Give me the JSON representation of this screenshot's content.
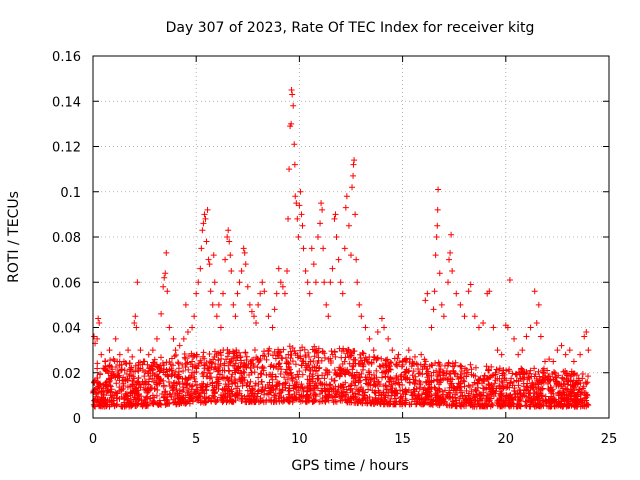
{
  "chart_data": {
    "type": "scatter",
    "title": "Day 307 of 2023, Rate Of TEC Index for receiver kitg",
    "xlabel": "GPS time / hours",
    "ylabel": "ROTI / TECUs",
    "xlim": [
      0,
      25
    ],
    "ylim": [
      0,
      0.16
    ],
    "xticks": [
      0,
      5,
      10,
      15,
      20,
      25
    ],
    "xtick_labels": [
      "0",
      "5",
      "10",
      "15",
      "20",
      "25"
    ],
    "yticks": [
      0,
      0.02,
      0.04,
      0.06,
      0.08,
      0.1,
      0.12,
      0.14,
      0.16
    ],
    "ytick_labels": [
      "0",
      "0.02",
      "0.04",
      "0.06",
      "0.08",
      "0.1",
      "0.12",
      "0.14",
      "0.16"
    ],
    "grid": true,
    "marker": "+",
    "color": "#ff0000",
    "series": [
      {
        "points": [
          [
            0.05,
            0.036
          ],
          [
            0.1,
            0.033
          ],
          [
            0.2,
            0.035
          ],
          [
            0.25,
            0.044
          ],
          [
            0.3,
            0.042
          ],
          [
            0.4,
            0.028
          ],
          [
            0.5,
            0.022
          ],
          [
            0.6,
            0.025
          ],
          [
            0.8,
            0.03
          ],
          [
            1.0,
            0.026
          ],
          [
            1.1,
            0.035
          ],
          [
            1.3,
            0.028
          ],
          [
            1.5,
            0.025
          ],
          [
            1.7,
            0.03
          ],
          [
            1.9,
            0.027
          ],
          [
            2.0,
            0.042
          ],
          [
            2.05,
            0.045
          ],
          [
            2.1,
            0.04
          ],
          [
            2.15,
            0.06
          ],
          [
            2.3,
            0.03
          ],
          [
            2.5,
            0.025
          ],
          [
            2.7,
            0.028
          ],
          [
            2.9,
            0.03
          ],
          [
            3.1,
            0.035
          ],
          [
            3.3,
            0.046
          ],
          [
            3.4,
            0.058
          ],
          [
            3.45,
            0.062
          ],
          [
            3.5,
            0.064
          ],
          [
            3.55,
            0.073
          ],
          [
            3.6,
            0.056
          ],
          [
            3.7,
            0.04
          ],
          [
            3.9,
            0.035
          ],
          [
            4.0,
            0.03
          ],
          [
            4.2,
            0.032
          ],
          [
            4.4,
            0.035
          ],
          [
            4.5,
            0.05
          ],
          [
            4.6,
            0.038
          ],
          [
            4.8,
            0.04
          ],
          [
            4.9,
            0.045
          ],
          [
            5.0,
            0.055
          ],
          [
            5.1,
            0.06
          ],
          [
            5.2,
            0.066
          ],
          [
            5.25,
            0.075
          ],
          [
            5.3,
            0.083
          ],
          [
            5.35,
            0.086
          ],
          [
            5.4,
            0.09
          ],
          [
            5.45,
            0.088
          ],
          [
            5.5,
            0.078
          ],
          [
            5.55,
            0.092
          ],
          [
            5.6,
            0.07
          ],
          [
            5.65,
            0.068
          ],
          [
            5.7,
            0.056
          ],
          [
            5.8,
            0.05
          ],
          [
            5.85,
            0.072
          ],
          [
            5.9,
            0.06
          ],
          [
            6.0,
            0.045
          ],
          [
            6.1,
            0.05
          ],
          [
            6.2,
            0.04
          ],
          [
            6.3,
            0.055
          ],
          [
            6.4,
            0.07
          ],
          [
            6.5,
            0.08
          ],
          [
            6.55,
            0.083
          ],
          [
            6.6,
            0.078
          ],
          [
            6.65,
            0.072
          ],
          [
            6.7,
            0.065
          ],
          [
            6.8,
            0.05
          ],
          [
            6.9,
            0.045
          ],
          [
            7.0,
            0.055
          ],
          [
            7.1,
            0.06
          ],
          [
            7.2,
            0.065
          ],
          [
            7.3,
            0.075
          ],
          [
            7.35,
            0.073
          ],
          [
            7.4,
            0.068
          ],
          [
            7.5,
            0.058
          ],
          [
            7.6,
            0.05
          ],
          [
            7.7,
            0.047
          ],
          [
            7.8,
            0.045
          ],
          [
            7.9,
            0.042
          ],
          [
            8.0,
            0.05
          ],
          [
            8.1,
            0.055
          ],
          [
            8.2,
            0.06
          ],
          [
            8.3,
            0.056
          ],
          [
            8.5,
            0.045
          ],
          [
            8.7,
            0.04
          ],
          [
            8.8,
            0.048
          ],
          [
            8.9,
            0.055
          ],
          [
            9.0,
            0.066
          ],
          [
            9.1,
            0.06
          ],
          [
            9.2,
            0.058
          ],
          [
            9.3,
            0.055
          ],
          [
            9.4,
            0.065
          ],
          [
            9.45,
            0.088
          ],
          [
            9.5,
            0.11
          ],
          [
            9.55,
            0.129
          ],
          [
            9.6,
            0.13
          ],
          [
            9.62,
            0.145
          ],
          [
            9.65,
            0.143
          ],
          [
            9.7,
            0.138
          ],
          [
            9.75,
            0.121
          ],
          [
            9.78,
            0.112
          ],
          [
            9.8,
            0.098
          ],
          [
            9.85,
            0.095
          ],
          [
            9.9,
            0.088
          ],
          [
            9.95,
            0.08
          ],
          [
            10.0,
            0.094
          ],
          [
            10.05,
            0.1
          ],
          [
            10.1,
            0.09
          ],
          [
            10.15,
            0.085
          ],
          [
            10.2,
            0.075
          ],
          [
            10.3,
            0.065
          ],
          [
            10.4,
            0.06
          ],
          [
            10.5,
            0.055
          ],
          [
            10.6,
            0.075
          ],
          [
            10.7,
            0.068
          ],
          [
            10.8,
            0.06
          ],
          [
            10.9,
            0.08
          ],
          [
            11.0,
            0.086
          ],
          [
            11.05,
            0.095
          ],
          [
            11.1,
            0.092
          ],
          [
            11.15,
            0.075
          ],
          [
            11.2,
            0.06
          ],
          [
            11.3,
            0.05
          ],
          [
            11.4,
            0.045
          ],
          [
            11.5,
            0.06
          ],
          [
            11.6,
            0.066
          ],
          [
            11.7,
            0.088
          ],
          [
            11.75,
            0.09
          ],
          [
            11.8,
            0.08
          ],
          [
            11.9,
            0.07
          ],
          [
            12.0,
            0.06
          ],
          [
            12.1,
            0.055
          ],
          [
            12.2,
            0.075
          ],
          [
            12.25,
            0.093
          ],
          [
            12.3,
            0.098
          ],
          [
            12.4,
            0.085
          ],
          [
            12.5,
            0.072
          ],
          [
            12.55,
            0.102
          ],
          [
            12.6,
            0.107
          ],
          [
            12.62,
            0.112
          ],
          [
            12.65,
            0.114
          ],
          [
            12.7,
            0.09
          ],
          [
            12.75,
            0.07
          ],
          [
            12.8,
            0.06
          ],
          [
            12.9,
            0.05
          ],
          [
            13.0,
            0.045
          ],
          [
            13.2,
            0.04
          ],
          [
            13.4,
            0.035
          ],
          [
            13.6,
            0.03
          ],
          [
            13.8,
            0.038
          ],
          [
            14.0,
            0.044
          ],
          [
            14.1,
            0.04
          ],
          [
            14.3,
            0.035
          ],
          [
            14.5,
            0.03
          ],
          [
            14.8,
            0.028
          ],
          [
            15.0,
            0.025
          ],
          [
            15.3,
            0.03
          ],
          [
            15.6,
            0.027
          ],
          [
            15.9,
            0.028
          ],
          [
            16.1,
            0.052
          ],
          [
            16.2,
            0.055
          ],
          [
            16.4,
            0.04
          ],
          [
            16.5,
            0.048
          ],
          [
            16.55,
            0.056
          ],
          [
            16.6,
            0.072
          ],
          [
            16.65,
            0.08
          ],
          [
            16.68,
            0.085
          ],
          [
            16.7,
            0.092
          ],
          [
            16.72,
            0.101
          ],
          [
            16.8,
            0.064
          ],
          [
            16.9,
            0.05
          ],
          [
            17.0,
            0.045
          ],
          [
            17.2,
            0.06
          ],
          [
            17.25,
            0.07
          ],
          [
            17.3,
            0.073
          ],
          [
            17.35,
            0.081
          ],
          [
            17.4,
            0.065
          ],
          [
            17.6,
            0.055
          ],
          [
            17.8,
            0.05
          ],
          [
            18.0,
            0.045
          ],
          [
            18.2,
            0.056
          ],
          [
            18.3,
            0.059
          ],
          [
            18.5,
            0.045
          ],
          [
            18.7,
            0.04
          ],
          [
            18.9,
            0.042
          ],
          [
            19.1,
            0.055
          ],
          [
            19.2,
            0.056
          ],
          [
            19.4,
            0.04
          ],
          [
            19.6,
            0.03
          ],
          [
            19.8,
            0.028
          ],
          [
            20.0,
            0.041
          ],
          [
            20.1,
            0.04
          ],
          [
            20.2,
            0.061
          ],
          [
            20.4,
            0.035
          ],
          [
            20.6,
            0.028
          ],
          [
            20.8,
            0.03
          ],
          [
            21.0,
            0.036
          ],
          [
            21.2,
            0.04
          ],
          [
            21.4,
            0.056
          ],
          [
            21.5,
            0.042
          ],
          [
            21.6,
            0.05
          ],
          [
            21.7,
            0.036
          ],
          [
            21.9,
            0.025
          ],
          [
            22.1,
            0.026
          ],
          [
            22.3,
            0.025
          ],
          [
            22.5,
            0.03
          ],
          [
            22.7,
            0.032
          ],
          [
            22.9,
            0.028
          ],
          [
            23.1,
            0.03
          ],
          [
            23.3,
            0.025
          ],
          [
            23.6,
            0.028
          ],
          [
            23.8,
            0.036
          ],
          [
            23.9,
            0.038
          ],
          [
            24.0,
            0.03
          ],
          [
            0.3,
            0.015
          ],
          [
            0.7,
            0.012
          ],
          [
            1.2,
            0.018
          ],
          [
            1.8,
            0.014
          ],
          [
            2.4,
            0.016
          ],
          [
            3.0,
            0.013
          ],
          [
            3.6,
            0.019
          ],
          [
            4.2,
            0.015
          ],
          [
            4.8,
            0.02
          ],
          [
            5.4,
            0.022
          ],
          [
            6.0,
            0.018
          ],
          [
            6.6,
            0.021
          ],
          [
            7.2,
            0.017
          ],
          [
            7.8,
            0.023
          ],
          [
            8.4,
            0.019
          ],
          [
            9.0,
            0.024
          ],
          [
            9.6,
            0.02
          ],
          [
            10.2,
            0.025
          ],
          [
            10.8,
            0.021
          ],
          [
            11.4,
            0.026
          ],
          [
            12.0,
            0.022
          ],
          [
            12.6,
            0.024
          ],
          [
            13.2,
            0.018
          ],
          [
            13.8,
            0.016
          ],
          [
            14.4,
            0.014
          ],
          [
            15.0,
            0.012
          ],
          [
            15.6,
            0.015
          ],
          [
            16.2,
            0.018
          ],
          [
            16.8,
            0.02
          ],
          [
            17.4,
            0.017
          ],
          [
            18.0,
            0.014
          ],
          [
            18.6,
            0.012
          ],
          [
            19.2,
            0.013
          ],
          [
            19.8,
            0.011
          ],
          [
            20.4,
            0.012
          ],
          [
            21.0,
            0.014
          ],
          [
            21.6,
            0.013
          ],
          [
            22.2,
            0.011
          ],
          [
            22.8,
            0.012
          ],
          [
            23.4,
            0.01
          ],
          [
            0.1,
            0.008
          ],
          [
            0.9,
            0.009
          ],
          [
            1.6,
            0.01
          ],
          [
            2.2,
            0.008
          ],
          [
            2.9,
            0.01
          ],
          [
            3.5,
            0.009
          ],
          [
            4.1,
            0.011
          ],
          [
            4.7,
            0.01
          ],
          [
            5.3,
            0.012
          ],
          [
            5.9,
            0.011
          ],
          [
            6.5,
            0.013
          ],
          [
            7.1,
            0.012
          ],
          [
            7.7,
            0.013
          ],
          [
            8.3,
            0.012
          ],
          [
            8.9,
            0.014
          ],
          [
            9.5,
            0.013
          ],
          [
            10.1,
            0.015
          ],
          [
            10.7,
            0.013
          ],
          [
            11.3,
            0.015
          ],
          [
            11.9,
            0.014
          ],
          [
            12.5,
            0.013
          ],
          [
            13.1,
            0.012
          ],
          [
            13.7,
            0.011
          ],
          [
            14.3,
            0.01
          ],
          [
            14.9,
            0.009
          ],
          [
            15.5,
            0.01
          ],
          [
            16.1,
            0.011
          ],
          [
            16.7,
            0.012
          ],
          [
            17.3,
            0.011
          ],
          [
            17.9,
            0.01
          ],
          [
            18.5,
            0.009
          ],
          [
            19.1,
            0.01
          ],
          [
            19.7,
            0.008
          ],
          [
            20.3,
            0.009
          ],
          [
            20.9,
            0.01
          ],
          [
            21.5,
            0.009
          ],
          [
            22.1,
            0.008
          ],
          [
            22.7,
            0.009
          ],
          [
            23.3,
            0.008
          ],
          [
            23.9,
            0.009
          ]
        ],
        "background_band": {
          "x_range": [
            0,
            24
          ],
          "y_envelope": [
            [
              0,
              0.005,
              0.026
            ],
            [
              2,
              0.005,
              0.025
            ],
            [
              4,
              0.006,
              0.028
            ],
            [
              6,
              0.007,
              0.03
            ],
            [
              8,
              0.007,
              0.031
            ],
            [
              10,
              0.007,
              0.032
            ],
            [
              12,
              0.007,
              0.031
            ],
            [
              14,
              0.006,
              0.027
            ],
            [
              16,
              0.006,
              0.026
            ],
            [
              18,
              0.005,
              0.024
            ],
            [
              20,
              0.005,
              0.022
            ],
            [
              22,
              0.005,
              0.022
            ],
            [
              24,
              0.005,
              0.02
            ]
          ]
        }
      }
    ]
  }
}
